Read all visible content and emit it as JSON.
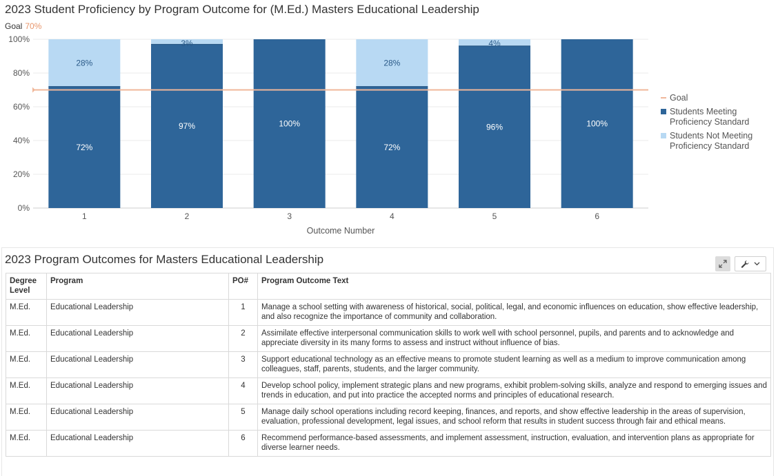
{
  "chart_data": {
    "type": "bar",
    "stacked": true,
    "title": "2023 Student Proficiency by Program Outcome for (M.Ed.) Masters Educational Leadership",
    "goal_label": "Goal",
    "goal_value_text": "70%",
    "goal_value": 70,
    "categories": [
      "1",
      "2",
      "3",
      "4",
      "5",
      "6"
    ],
    "series": [
      {
        "name": "Students Meeting Proficiency Standard",
        "name_lines": [
          "Students Meeting",
          "Proficiency Standard"
        ],
        "values": [
          72,
          97,
          100,
          72,
          96,
          100
        ],
        "labels": [
          "72%",
          "97%",
          "100%",
          "72%",
          "96%",
          "100%"
        ],
        "color": "#2e6599"
      },
      {
        "name": "Students Not Meeting Proficiency Standard",
        "name_lines": [
          "Students Not Meeting",
          "Proficiency Standard"
        ],
        "values": [
          28,
          3,
          0,
          28,
          4,
          0
        ],
        "labels": [
          "28%",
          "3%",
          "",
          "28%",
          "4%",
          ""
        ],
        "color": "#b8d9f3"
      }
    ],
    "goal_color": "#f0b79a",
    "xlabel": "Outcome Number",
    "ylabel": "",
    "ylim": [
      0,
      100
    ],
    "yticks": [
      "0%",
      "20%",
      "40%",
      "60%",
      "80%",
      "100%"
    ],
    "grid": true,
    "legend_position": "right"
  },
  "table": {
    "title": "2023 Program Outcomes for Masters Educational Leadership",
    "headers": [
      "Degree Level",
      "Program",
      "PO#",
      "Program Outcome Text"
    ],
    "rows": [
      [
        "M.Ed.",
        "Educational Leadership",
        "1",
        "Manage a school setting with awareness of historical, social, political, legal, and economic influences on education, show effective leadership, and also recognize the importance of community and collaboration."
      ],
      [
        "M.Ed.",
        "Educational Leadership",
        "2",
        "Assimilate effective interpersonal communication skills to work well with school personnel, pupils, and parents and to acknowledge and appreciate diversity in its many forms to assess and instruct without influence of bias."
      ],
      [
        "M.Ed.",
        "Educational Leadership",
        "3",
        "Support educational technology as an effective means to promote student learning as well as a medium to improve communication among colleagues, staff, parents, students, and the larger community."
      ],
      [
        "M.Ed.",
        "Educational Leadership",
        "4",
        "Develop school policy, implement strategic plans and new programs, exhibit problem-solving skills, analyze and respond to emerging issues and trends in education, and put into practice the accepted norms and principles of educational research."
      ],
      [
        "M.Ed.",
        "Educational Leadership",
        "5",
        "Manage daily school operations including record keeping, finances, and reports, and show effective leadership in the areas of supervision, evaluation, professional development, legal issues, and school reform that results in student success through fair and ethical means."
      ],
      [
        "M.Ed.",
        "Educational Leadership",
        "6",
        "Recommend performance-based assessments, and implement assessment, instruction, evaluation, and intervention plans as appropriate for diverse learner needs."
      ]
    ]
  },
  "icons": {
    "expand": "expand-icon",
    "wrench": "wrench-icon",
    "chevron": "chevron-down-icon"
  }
}
